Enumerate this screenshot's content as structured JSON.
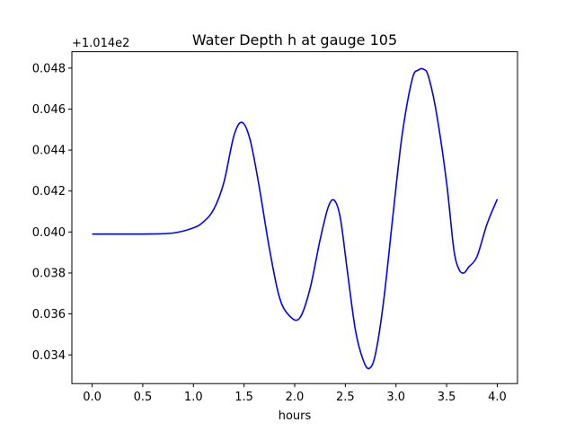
{
  "chart_data": {
    "type": "line",
    "title": "Water Depth h at gauge 105",
    "xlabel": "hours",
    "ylabel": "",
    "offset_label": "+1.014e2",
    "xlim": [
      -0.2,
      4.2
    ],
    "ylim": [
      0.0326,
      0.0488
    ],
    "x_ticks": [
      0.0,
      0.5,
      1.0,
      1.5,
      2.0,
      2.5,
      3.0,
      3.5,
      4.0
    ],
    "x_tick_labels": [
      "0.0",
      "0.5",
      "1.0",
      "1.5",
      "2.0",
      "2.5",
      "3.0",
      "3.5",
      "4.0"
    ],
    "y_ticks": [
      0.034,
      0.036,
      0.038,
      0.04,
      0.042,
      0.044,
      0.046,
      0.048
    ],
    "y_tick_labels": [
      "0.034",
      "0.036",
      "0.038",
      "0.040",
      "0.042",
      "0.044",
      "0.046",
      "0.048"
    ],
    "grid": false,
    "color": "#0000ff",
    "series": [
      {
        "x": [
          0.0,
          0.5,
          0.8,
          1.0,
          1.1,
          1.2,
          1.3,
          1.4,
          1.48,
          1.56,
          1.65,
          1.75,
          1.85,
          1.95,
          2.05,
          2.15,
          2.25,
          2.33,
          2.39,
          2.45,
          2.52,
          2.6,
          2.68,
          2.74,
          2.8,
          2.88,
          2.97,
          3.06,
          3.16,
          3.22,
          3.27,
          3.32,
          3.4,
          3.5,
          3.57,
          3.62,
          3.67,
          3.72,
          3.8,
          3.9,
          4.0
        ],
        "y": [
          0.0399,
          0.0399,
          0.03995,
          0.0402,
          0.0405,
          0.0411,
          0.0424,
          0.0447,
          0.04535,
          0.0445,
          0.0422,
          0.0392,
          0.0368,
          0.0359,
          0.0358,
          0.0372,
          0.0396,
          0.0412,
          0.04155,
          0.0407,
          0.0381,
          0.0352,
          0.0337,
          0.03335,
          0.0341,
          0.0367,
          0.0408,
          0.0447,
          0.04745,
          0.0479,
          0.04795,
          0.0476,
          0.0458,
          0.0424,
          0.0392,
          0.0382,
          0.038,
          0.0383,
          0.0388,
          0.0404,
          0.0416
        ]
      }
    ]
  }
}
